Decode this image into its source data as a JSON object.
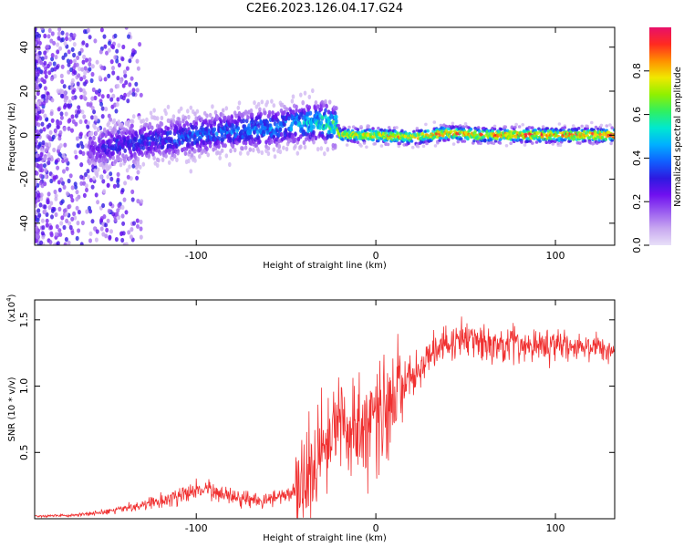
{
  "title": "C2E6.2023.126.04.17.G24",
  "colors": {
    "snr_line": "#f03030",
    "frame": "#000000",
    "colormap": [
      "#e8e0f8",
      "#c8a8f0",
      "#9a5cf0",
      "#7010f0",
      "#2d1ae0",
      "#1060ff",
      "#00b0ff",
      "#00e8d0",
      "#30f060",
      "#90f000",
      "#f0e800",
      "#ff9000",
      "#ff2a20",
      "#e8106a"
    ]
  },
  "chart_data": [
    {
      "type": "heatmap",
      "name": "spectrogram",
      "xlabel": "Height of straight line (km)",
      "ylabel": "Frequency (Hz)",
      "xlim": [
        -190,
        133
      ],
      "ylim": [
        -50,
        49
      ],
      "xticks": [
        -100,
        0,
        100
      ],
      "xtick_labels": [
        "-100",
        "0",
        "100"
      ],
      "yticks": [
        -40,
        -20,
        0,
        20,
        40
      ],
      "ytick_labels": [
        "-40",
        "-20",
        "0",
        "20",
        "40"
      ],
      "colorbar": {
        "label": "Normalized spectral amplitude",
        "range": [
          0,
          1
        ],
        "ticks": [
          0.0,
          0.2,
          0.4,
          0.6,
          0.8
        ],
        "tick_labels": [
          "0.0",
          "0.2",
          "0.4",
          "0.6",
          "0.8"
        ]
      },
      "ridge": {
        "x": [
          -190,
          -165,
          -150,
          -140,
          -120,
          -100,
          -80,
          -60,
          -45,
          -30,
          -22,
          -20,
          0,
          20,
          40,
          60,
          80,
          100,
          120,
          133
        ],
        "freq": [
          -15,
          -8,
          -5,
          -4,
          -2,
          0,
          2,
          3,
          5,
          6,
          4,
          0,
          0,
          -1,
          1,
          0,
          0,
          0,
          0,
          0
        ],
        "amplitude": [
          0.05,
          0.15,
          0.3,
          0.32,
          0.35,
          0.38,
          0.4,
          0.42,
          0.45,
          0.55,
          0.6,
          0.75,
          0.8,
          0.82,
          0.85,
          0.87,
          0.88,
          0.9,
          0.9,
          0.9
        ]
      }
    },
    {
      "type": "line",
      "name": "snr",
      "xlabel": "Height of straight line (km)",
      "ylabel": "SNR (10 * v/v)",
      "multiplier_label": "(x10",
      "multiplier_exponent": "4",
      "multiplier_close": ")",
      "xlim": [
        -190,
        133
      ],
      "ylim": [
        0,
        16500
      ],
      "xticks": [
        -100,
        0,
        100
      ],
      "xtick_labels": [
        "-100",
        "0",
        "100"
      ],
      "yticks": [
        5000,
        10000,
        15000
      ],
      "ytick_labels": [
        "0.5",
        "1.0",
        "1.5"
      ],
      "series": [
        {
          "name": "SNR",
          "x": [
            -190,
            -170,
            -150,
            -140,
            -130,
            -120,
            -110,
            -100,
            -90,
            -80,
            -70,
            -60,
            -50,
            -40,
            -35,
            -30,
            -25,
            -20,
            -15,
            -10,
            -5,
            0,
            5,
            10,
            15,
            20,
            25,
            30,
            40,
            50,
            60,
            70,
            80,
            90,
            100,
            110,
            120,
            133
          ],
          "values": [
            200,
            250,
            500,
            800,
            1000,
            1300,
            1700,
            2200,
            2000,
            1800,
            1500,
            1400,
            1800,
            2200,
            3500,
            5500,
            7500,
            7800,
            7000,
            6800,
            7200,
            7500,
            8200,
            9000,
            10000,
            10800,
            11400,
            12200,
            13200,
            13500,
            13300,
            13200,
            13100,
            13100,
            13100,
            13000,
            12900,
            12800
          ]
        }
      ]
    }
  ]
}
